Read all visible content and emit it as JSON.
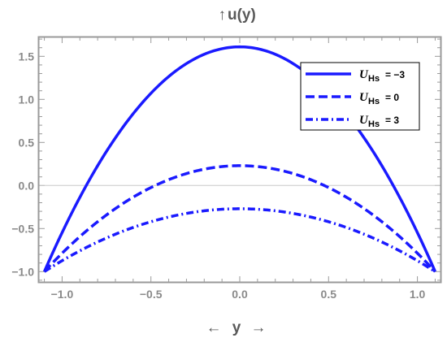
{
  "chart_data": {
    "type": "line",
    "title": "",
    "ylabel_symbol": "↑",
    "ylabel": "u(y)",
    "xlabel_left_arrow": "←",
    "xlabel": "y",
    "xlabel_right_arrow": "→",
    "xlim": [
      -1.13,
      1.13
    ],
    "ylim": [
      -1.12,
      1.72
    ],
    "xticks": [
      -1.0,
      -0.5,
      0.0,
      0.5,
      1.0
    ],
    "xtick_labels": [
      "−1.0",
      "−0.5",
      "0.0",
      "0.5",
      "1.0"
    ],
    "yticks": [
      -1.0,
      -0.5,
      0.0,
      0.5,
      1.0,
      1.5
    ],
    "ytick_labels": [
      "−1.0",
      "−0.5",
      "0.0",
      "0.5",
      "1.0",
      "1.5"
    ],
    "legend_position": "top-right",
    "grid": false,
    "zero_line": true,
    "line_color": "#1a1aff",
    "series": [
      {
        "name": "U_Hs = −3",
        "symbol": "U",
        "subscript": "Hs",
        "value_text": "= −3",
        "style": "solid",
        "x": [
          -1.1,
          -0.9,
          -0.7,
          -0.5,
          -0.3,
          0.0,
          0.3,
          0.5,
          0.7,
          0.9,
          1.1
        ],
        "y": [
          -1.0,
          0.15,
          0.74,
          1.16,
          1.45,
          1.61,
          1.45,
          1.16,
          0.74,
          0.15,
          -1.0
        ]
      },
      {
        "name": "U_Hs = 0",
        "symbol": "U",
        "subscript": "Hs",
        "value_text": "= 0",
        "style": "dashed",
        "x": [
          -1.1,
          -0.9,
          -0.7,
          -0.5,
          -0.3,
          0.0,
          0.3,
          0.5,
          0.7,
          0.9,
          1.1
        ],
        "y": [
          -1.0,
          -0.56,
          -0.22,
          0.02,
          0.17,
          0.23,
          0.17,
          0.02,
          -0.22,
          -0.56,
          -1.0
        ]
      },
      {
        "name": "U_Hs = 3",
        "symbol": "U",
        "subscript": "Hs",
        "value_text": "= 3",
        "style": "dashdot",
        "x": [
          -1.1,
          -0.9,
          -0.7,
          -0.5,
          -0.3,
          0.0,
          0.3,
          0.5,
          0.7,
          0.9,
          1.1
        ],
        "y": [
          -1.0,
          -0.75,
          -0.56,
          -0.42,
          -0.32,
          -0.27,
          -0.32,
          -0.42,
          -0.56,
          -0.75,
          -1.0
        ]
      }
    ]
  }
}
